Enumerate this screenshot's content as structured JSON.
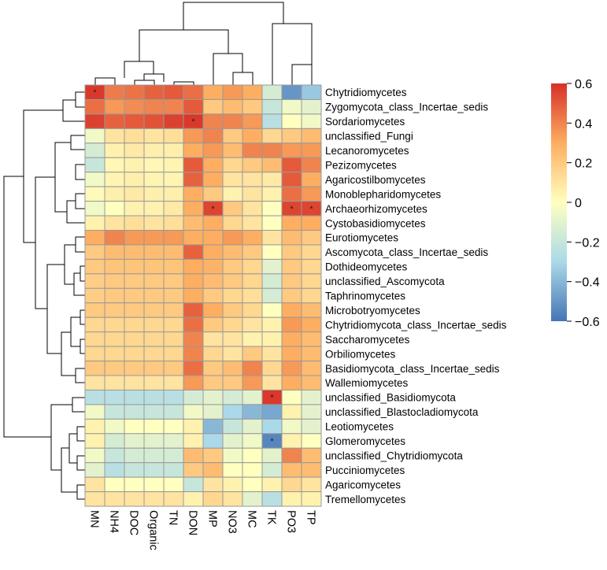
{
  "chart_data": {
    "type": "heatmap",
    "title": "",
    "columns": [
      "MN",
      "NH4",
      "DOC",
      "Organic",
      "TN",
      "DON",
      "MP",
      "NO3",
      "MC",
      "TK",
      "PO3",
      "TP"
    ],
    "rows": [
      "Chytridiomycetes",
      "Zygomycota_class_Incertae_sedis",
      "Sordariomycetes",
      "unclassified_Fungi",
      "Lecanoromycetes",
      "Pezizomycetes",
      "Agaricostilbomycetes",
      "Monoblepharidomycetes",
      "Archaeorhizomycetes",
      "Cystobasidiomycetes",
      "Eurotiomycetes",
      "Ascomycota_class_Incertae_sedis",
      "Dothideomycetes",
      "unclassified_Ascomycota",
      "Taphrinomycetes",
      "Microbotryomycetes",
      "Chytridiomycota_class_Incertae_sedis",
      "Saccharomycetes",
      "Orbiliomycetes",
      "Basidiomycota_class_Incertae_sedis",
      "Wallemiomycetes",
      "unclassified_Basidiomycota",
      "unclassified_Blastocladiomycota",
      "Leotiomycetes",
      "Glomeromycetes",
      "unclassified_Chytridiomycota",
      "Pucciniomycetes",
      "Agaricomycetes",
      "Tremellomycetes"
    ],
    "values": [
      [
        0.58,
        0.42,
        0.44,
        0.48,
        0.5,
        0.45,
        0.3,
        0.35,
        0.3,
        -0.15,
        -0.5,
        -0.35
      ],
      [
        0.45,
        0.35,
        0.38,
        0.4,
        0.4,
        0.5,
        0.2,
        0.25,
        0.2,
        -0.2,
        -0.05,
        -0.1
      ],
      [
        0.56,
        0.48,
        0.5,
        0.52,
        0.56,
        0.58,
        0.4,
        0.4,
        0.35,
        -0.25,
        0.0,
        -0.05
      ],
      [
        -0.05,
        0.1,
        0.12,
        0.1,
        0.12,
        0.35,
        0.4,
        0.2,
        0.3,
        0.15,
        0.2,
        0.25
      ],
      [
        -0.15,
        0.05,
        0.08,
        0.06,
        0.06,
        0.3,
        0.35,
        0.25,
        0.4,
        0.4,
        0.35,
        0.35
      ],
      [
        -0.2,
        0.03,
        0.05,
        0.03,
        0.04,
        0.5,
        0.3,
        0.15,
        0.2,
        0.25,
        0.5,
        0.4
      ],
      [
        -0.05,
        0.04,
        0.06,
        0.04,
        0.04,
        0.48,
        0.3,
        0.1,
        0.1,
        0.08,
        0.5,
        0.3
      ],
      [
        0.02,
        0.06,
        0.08,
        0.06,
        0.06,
        0.3,
        0.2,
        0.05,
        0.1,
        0.05,
        0.45,
        0.35
      ],
      [
        -0.05,
        0.0,
        0.05,
        0.05,
        0.08,
        0.3,
        0.55,
        0.2,
        0.1,
        0.0,
        0.55,
        0.55
      ],
      [
        0.05,
        0.1,
        0.12,
        0.1,
        0.12,
        0.25,
        0.3,
        0.15,
        0.1,
        0.0,
        0.3,
        0.3
      ],
      [
        0.3,
        0.4,
        0.35,
        0.35,
        0.35,
        0.3,
        0.3,
        0.35,
        0.3,
        0.1,
        0.25,
        0.2
      ],
      [
        0.2,
        0.25,
        0.25,
        0.25,
        0.25,
        0.48,
        0.3,
        0.25,
        0.2,
        0.0,
        0.2,
        0.15
      ],
      [
        0.2,
        0.22,
        0.22,
        0.22,
        0.22,
        0.3,
        0.28,
        0.2,
        0.15,
        -0.1,
        0.2,
        0.15
      ],
      [
        0.18,
        0.2,
        0.2,
        0.2,
        0.2,
        0.3,
        0.25,
        0.2,
        0.15,
        -0.15,
        0.2,
        0.15
      ],
      [
        0.18,
        0.2,
        0.2,
        0.2,
        0.2,
        0.3,
        0.2,
        0.15,
        0.12,
        -0.15,
        0.2,
        0.15
      ],
      [
        0.2,
        0.2,
        0.2,
        0.2,
        0.2,
        0.48,
        0.3,
        0.2,
        0.15,
        0.0,
        0.3,
        0.25
      ],
      [
        0.15,
        0.15,
        0.15,
        0.15,
        0.15,
        0.45,
        0.2,
        0.15,
        0.1,
        0.05,
        0.35,
        0.3
      ],
      [
        0.15,
        0.15,
        0.15,
        0.15,
        0.15,
        0.4,
        0.1,
        0.1,
        0.05,
        0.05,
        0.3,
        0.25
      ],
      [
        0.15,
        0.15,
        0.15,
        0.15,
        0.15,
        0.4,
        0.15,
        0.1,
        0.2,
        0.1,
        0.3,
        0.25
      ],
      [
        0.2,
        0.2,
        0.2,
        0.2,
        0.2,
        0.45,
        0.2,
        0.25,
        0.4,
        0.15,
        0.35,
        0.25
      ],
      [
        0.1,
        0.1,
        0.1,
        0.1,
        0.1,
        0.35,
        0.2,
        0.2,
        0.35,
        0.1,
        0.3,
        0.25
      ],
      [
        -0.25,
        -0.25,
        -0.25,
        -0.25,
        -0.25,
        -0.15,
        -0.1,
        -0.15,
        -0.1,
        0.58,
        0.0,
        -0.1
      ],
      [
        -0.05,
        -0.2,
        -0.2,
        -0.2,
        -0.2,
        -0.05,
        -0.1,
        -0.3,
        -0.4,
        -0.45,
        0.05,
        -0.1
      ],
      [
        0.05,
        -0.05,
        0.0,
        0.0,
        0.0,
        0.05,
        -0.4,
        -0.2,
        -0.1,
        -0.3,
        -0.05,
        -0.1
      ],
      [
        0.05,
        -0.15,
        -0.1,
        -0.1,
        -0.1,
        0.05,
        -0.3,
        -0.1,
        -0.05,
        -0.55,
        0.05,
        0.0
      ],
      [
        -0.05,
        -0.2,
        -0.15,
        -0.15,
        -0.15,
        0.25,
        0.2,
        -0.05,
        0.0,
        -0.1,
        0.4,
        0.25
      ],
      [
        -0.1,
        -0.25,
        -0.2,
        -0.2,
        -0.2,
        0.2,
        0.25,
        0.0,
        0.0,
        -0.15,
        0.25,
        0.25
      ],
      [
        0.1,
        0.0,
        0.0,
        0.0,
        0.0,
        -0.2,
        0.1,
        0.05,
        0.0,
        0.05,
        0.15,
        0.1
      ],
      [
        0.1,
        0.1,
        0.1,
        0.1,
        0.1,
        0.05,
        0.15,
        0.1,
        -0.1,
        -0.25,
        0.05,
        0.05
      ]
    ],
    "significance": [
      {
        "row": 0,
        "col": 0,
        "mark": "*"
      },
      {
        "row": 2,
        "col": 5,
        "mark": "*"
      },
      {
        "row": 8,
        "col": 6,
        "mark": "*"
      },
      {
        "row": 8,
        "col": 10,
        "mark": "*"
      },
      {
        "row": 8,
        "col": 11,
        "mark": "*"
      },
      {
        "row": 21,
        "col": 9,
        "mark": "*"
      },
      {
        "row": 24,
        "col": 9,
        "mark": "*"
      }
    ],
    "color_scale": {
      "min": -0.6,
      "max": 0.6,
      "low": "#4575b4",
      "mid": "#ffffbf",
      "high": "#d73027",
      "ticks": [
        0.6,
        0.4,
        0.2,
        0,
        -0.2,
        -0.4,
        -0.6
      ],
      "tick_labels": [
        "0.6",
        "0.4",
        "0.2",
        "0",
        "−0.2",
        "−0.4",
        "−0.6"
      ]
    },
    "legend_position": "right",
    "dendrograms": [
      "top",
      "left"
    ],
    "cell_border_color": "#999999"
  }
}
